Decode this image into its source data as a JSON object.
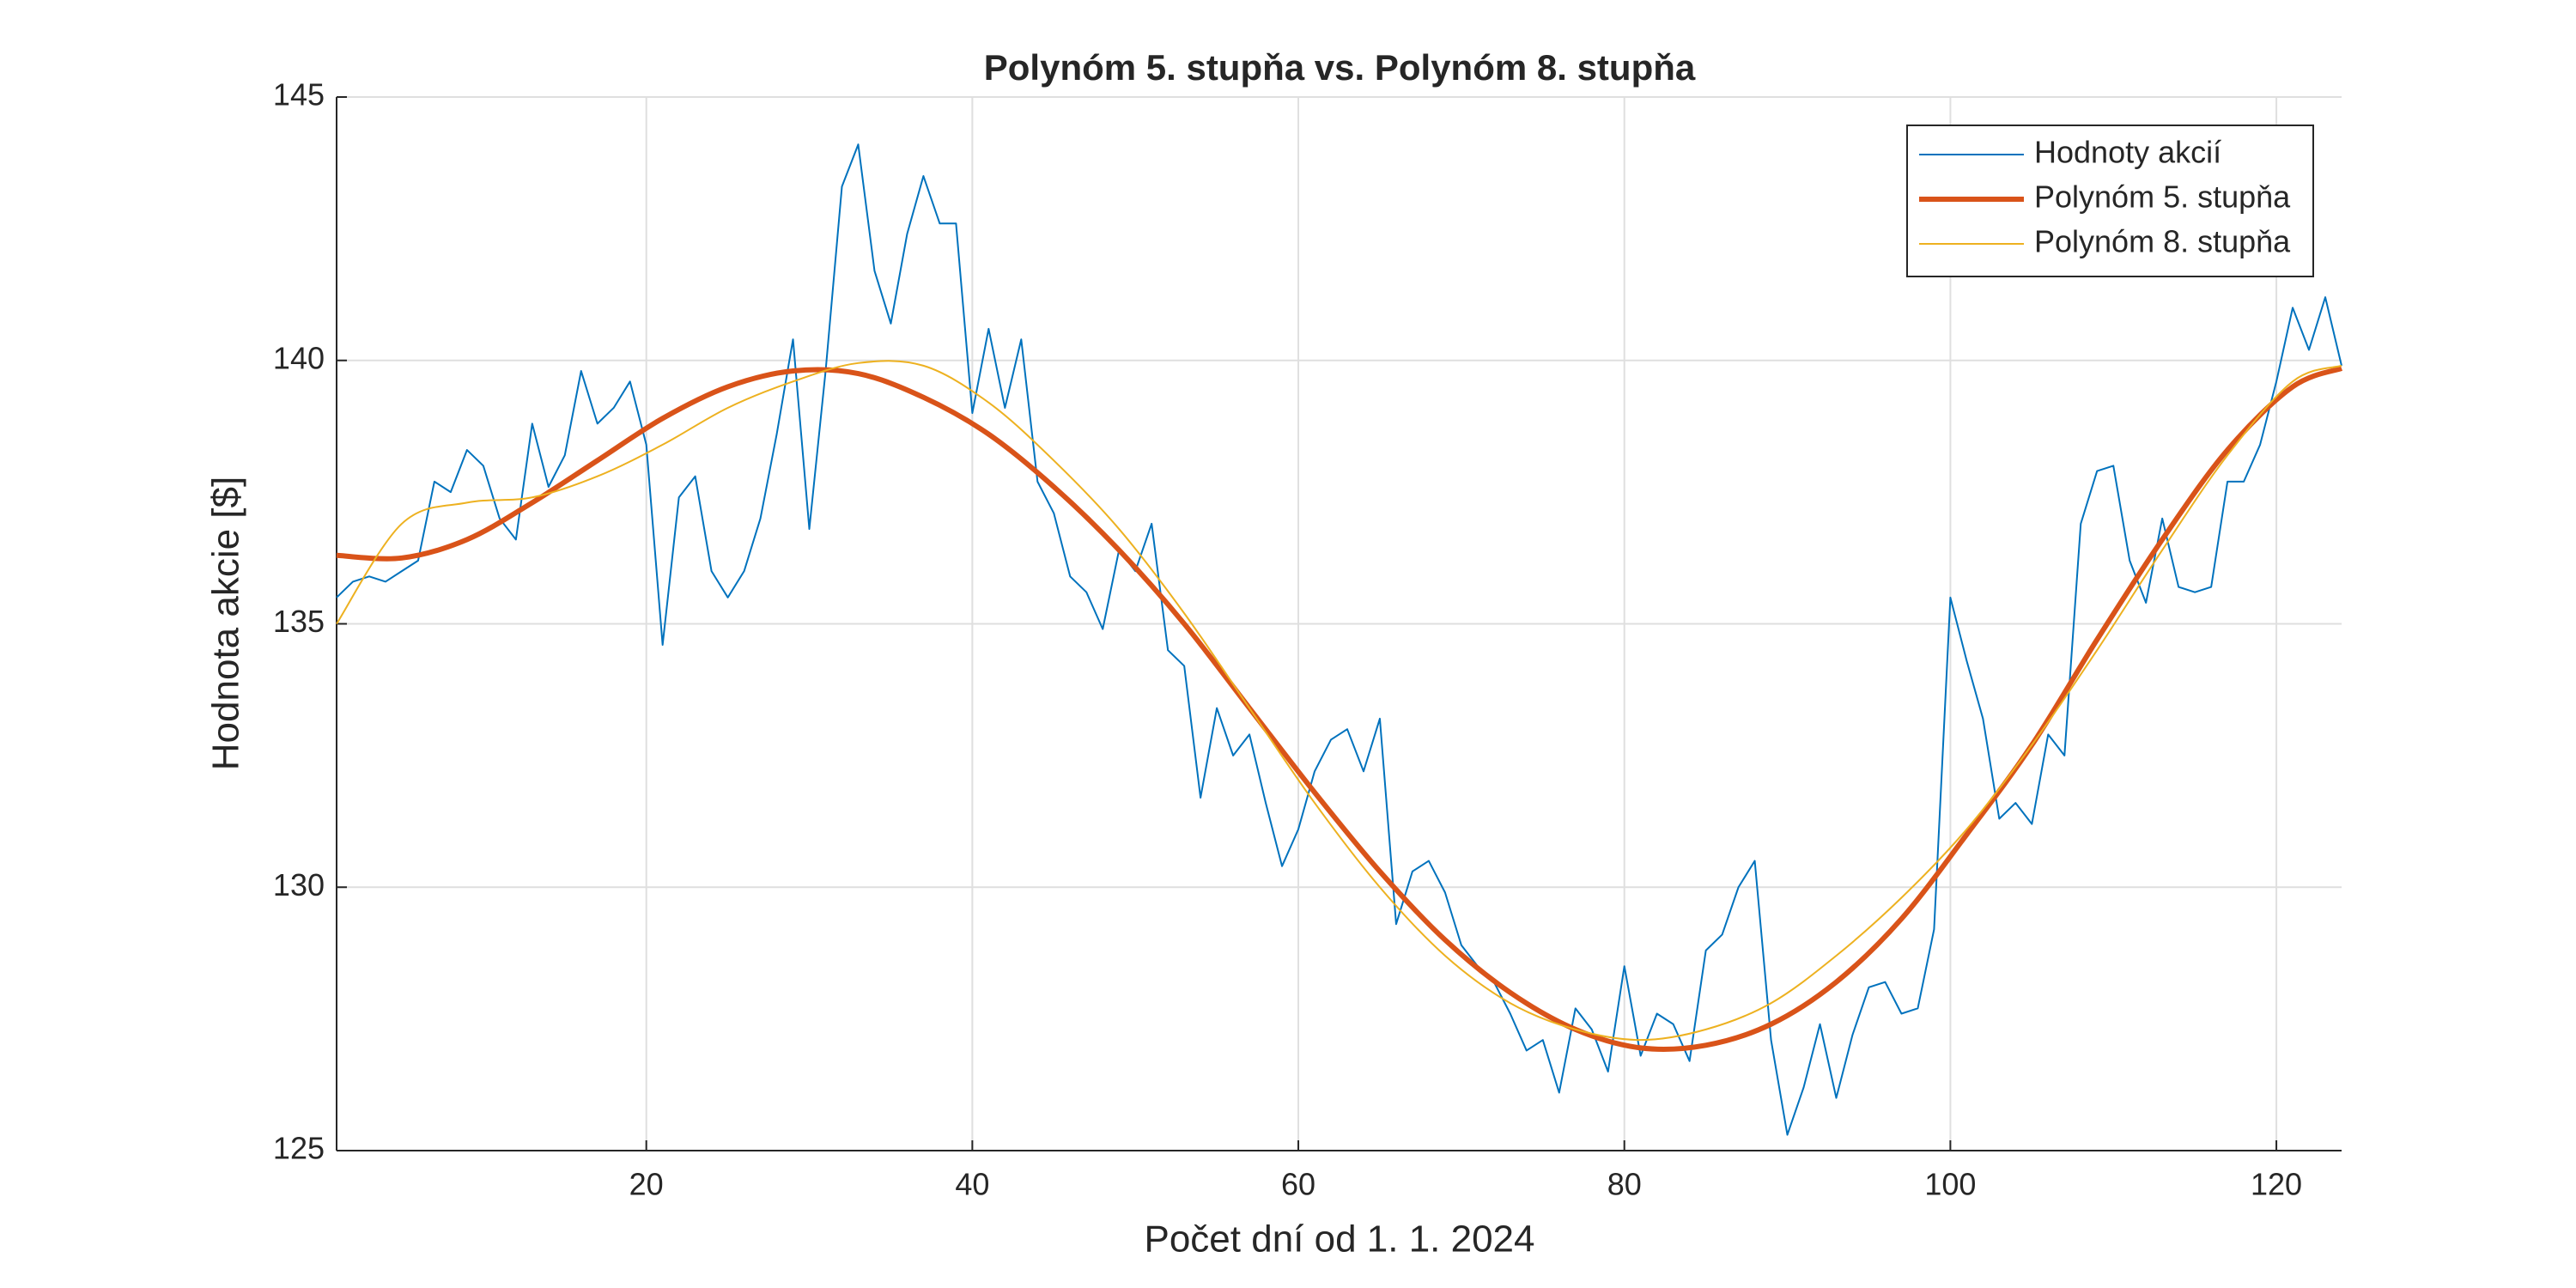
{
  "chart_data": {
    "type": "line",
    "title": "Polynóm 5. stupňa vs. Polynóm 8. stupňa",
    "xlabel": "Počet dní od 1. 1. 2024",
    "ylabel": "Hodnota akcie [$]",
    "xlim": [
      1,
      124
    ],
    "ylim": [
      125,
      145
    ],
    "xticks": [
      20,
      40,
      60,
      80,
      100,
      120
    ],
    "yticks": [
      125,
      130,
      135,
      140,
      145
    ],
    "grid": true,
    "legend": "upper right",
    "series": [
      {
        "name": "Hodnoty akcií",
        "color": "#0072BD",
        "x": [
          1,
          2,
          3,
          4,
          5,
          6,
          7,
          8,
          9,
          10,
          11,
          12,
          13,
          14,
          15,
          16,
          17,
          18,
          19,
          20,
          21,
          22,
          23,
          24,
          25,
          26,
          27,
          28,
          29,
          30,
          31,
          32,
          33,
          34,
          35,
          36,
          37,
          38,
          39,
          40,
          41,
          42,
          43,
          44,
          45,
          46,
          47,
          48,
          49,
          50,
          51,
          52,
          53,
          54,
          55,
          56,
          57,
          58,
          59,
          60,
          61,
          62,
          63,
          64,
          65,
          66,
          67,
          68,
          69,
          70,
          71,
          72,
          73,
          74,
          75,
          76,
          77,
          78,
          79,
          80,
          81,
          82,
          83,
          84,
          85,
          86,
          87,
          88,
          89,
          90,
          91,
          92,
          93,
          94,
          95,
          96,
          97,
          98,
          99,
          100,
          101,
          102,
          103,
          104,
          105,
          106,
          107,
          108,
          109,
          110,
          111,
          112,
          113,
          114,
          115,
          116,
          117,
          118,
          119,
          120,
          121,
          122,
          123,
          124
        ],
        "values": [
          135.5,
          135.8,
          135.9,
          135.8,
          136.0,
          136.2,
          137.7,
          137.5,
          138.3,
          138.0,
          137.0,
          136.6,
          138.8,
          137.6,
          138.2,
          139.8,
          138.8,
          139.1,
          139.6,
          138.4,
          134.6,
          137.4,
          137.8,
          136.0,
          135.5,
          136.0,
          137.0,
          138.6,
          140.4,
          136.8,
          139.8,
          143.3,
          144.1,
          141.7,
          140.7,
          142.4,
          143.5,
          142.6,
          142.6,
          139.0,
          140.6,
          139.1,
          140.4,
          137.7,
          137.1,
          135.9,
          135.6,
          134.9,
          136.4,
          136.0,
          136.9,
          134.5,
          134.2,
          131.7,
          133.4,
          132.5,
          132.9,
          131.6,
          130.4,
          131.1,
          132.2,
          132.8,
          133.0,
          132.2,
          133.2,
          129.3,
          130.3,
          130.5,
          129.9,
          128.9,
          128.5,
          128.2,
          127.6,
          126.9,
          127.1,
          126.1,
          127.7,
          127.3,
          126.5,
          128.5,
          126.8,
          127.6,
          127.4,
          126.7,
          128.8,
          129.1,
          130.0,
          130.5,
          127.1,
          125.3,
          126.2,
          127.4,
          126.0,
          127.2,
          128.1,
          128.2,
          127.6,
          127.7,
          129.2,
          135.5,
          134.3,
          133.2,
          131.3,
          131.6,
          131.2,
          132.9,
          132.5,
          136.9,
          137.9,
          138.0,
          136.2,
          135.4,
          137.0,
          135.7,
          135.6,
          135.7,
          137.7,
          137.7,
          138.4,
          139.6,
          141.0,
          140.2,
          141.2,
          139.9
        ]
      },
      {
        "name": "Polynóm 5. stupňa",
        "color": "#D95319",
        "x": [
          1,
          5,
          9,
          13,
          17,
          21,
          25,
          29,
          33,
          37,
          41,
          45,
          49,
          53,
          57,
          61,
          65,
          69,
          73,
          77,
          81,
          85,
          89,
          93,
          97,
          101,
          105,
          109,
          113,
          117,
          121,
          124
        ],
        "values": [
          136.3,
          136.25,
          136.6,
          137.3,
          138.1,
          138.9,
          139.5,
          139.8,
          139.75,
          139.3,
          138.6,
          137.6,
          136.4,
          135.0,
          133.4,
          131.8,
          130.3,
          129.0,
          128.0,
          127.3,
          126.95,
          127.0,
          127.4,
          128.2,
          129.4,
          131.0,
          132.7,
          134.7,
          136.6,
          138.3,
          139.5,
          139.85
        ]
      },
      {
        "name": "Polynóm 8. stupňa",
        "color": "#EDB120",
        "x": [
          1,
          5,
          9,
          13,
          17,
          21,
          25,
          29,
          33,
          37,
          41,
          45,
          49,
          53,
          57,
          61,
          65,
          69,
          73,
          77,
          81,
          85,
          89,
          93,
          97,
          101,
          105,
          109,
          113,
          117,
          121,
          124
        ],
        "values": [
          135.0,
          136.9,
          137.3,
          137.4,
          137.8,
          138.4,
          139.1,
          139.6,
          139.95,
          139.9,
          139.2,
          138.1,
          136.8,
          135.2,
          133.4,
          131.6,
          130.0,
          128.7,
          127.8,
          127.3,
          127.1,
          127.3,
          127.8,
          128.7,
          129.8,
          131.1,
          132.7,
          134.5,
          136.4,
          138.2,
          139.6,
          139.9
        ]
      }
    ]
  }
}
